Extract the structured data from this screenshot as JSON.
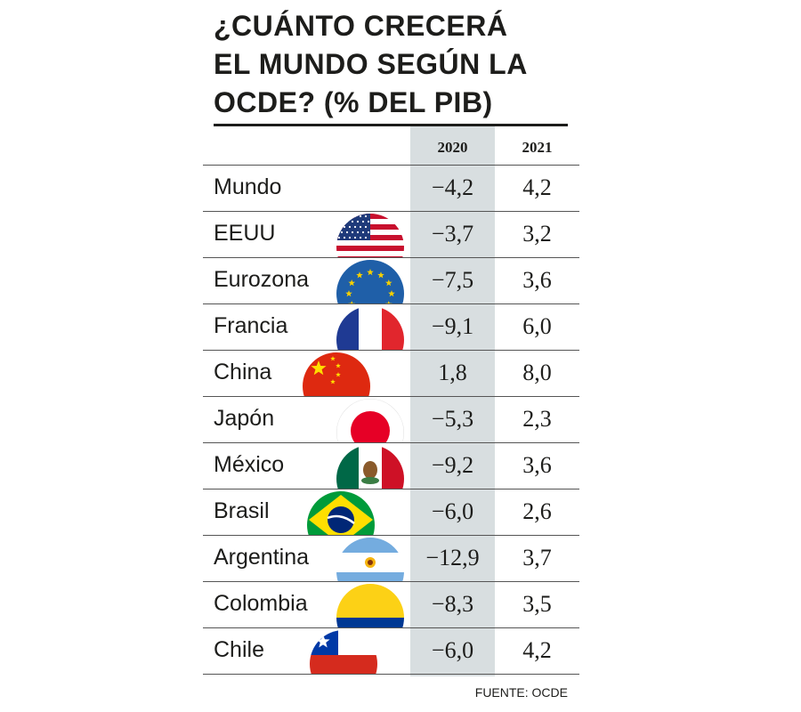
{
  "chart_data": {
    "type": "table",
    "title_lines": [
      "¿CUÁNTO CRECERÁ",
      "EL MUNDO SEGÚN LA",
      "OCDE? (% DEL PIB)"
    ],
    "columns": [
      "2020",
      "2021"
    ],
    "highlight_column": "2020",
    "rows": [
      {
        "name": "Mundo",
        "flag": "",
        "values": [
          "−4,2",
          "4,2"
        ]
      },
      {
        "name": "EEUU",
        "flag": "usa-flag-icon",
        "values": [
          "−3,7",
          "3,2"
        ]
      },
      {
        "name": "Eurozona",
        "flag": "eu-flag-icon",
        "values": [
          "−7,5",
          "3,6"
        ]
      },
      {
        "name": "Francia",
        "flag": "france-flag-icon",
        "values": [
          "−9,1",
          "6,0"
        ]
      },
      {
        "name": "China",
        "flag": "china-flag-icon",
        "values": [
          "1,8",
          "8,0"
        ]
      },
      {
        "name": "Japón",
        "flag": "japan-flag-icon",
        "values": [
          "−5,3",
          "2,3"
        ]
      },
      {
        "name": "México",
        "flag": "mexico-flag-icon",
        "values": [
          "−9,2",
          "3,6"
        ]
      },
      {
        "name": "Brasil",
        "flag": "brazil-flag-icon",
        "values": [
          "−6,0",
          "2,6"
        ]
      },
      {
        "name": "Argentina",
        "flag": "argentina-flag-icon",
        "values": [
          "−12,9",
          "3,7"
        ]
      },
      {
        "name": "Colombia",
        "flag": "colombia-flag-icon",
        "values": [
          "−8,3",
          "3,5"
        ]
      },
      {
        "name": "Chile",
        "flag": "chile-flag-icon",
        "values": [
          "−6,0",
          "4,2"
        ]
      }
    ],
    "source": "FUENTE: OCDE"
  },
  "colors": {
    "text": "#1d1d1b",
    "highlight_column_bg": "#d8dee0",
    "rule": "#555555"
  }
}
